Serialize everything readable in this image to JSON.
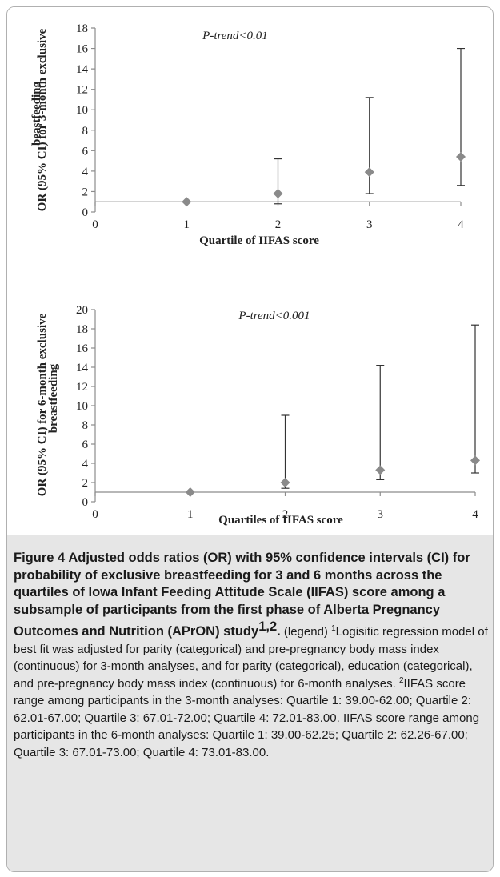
{
  "chart_data": [
    {
      "type": "scatter",
      "subtype": "point-estimates-with-error-bars",
      "annotation": "P-trend<0.01",
      "xlabel": "Quartile of IIFAS score",
      "ylabel_lines": [
        "OR (95% CI) for 3-month exclusive",
        "beastfeeding"
      ],
      "xlim": [
        0,
        4
      ],
      "ylim": [
        0,
        18
      ],
      "x_ticks": [
        0,
        1,
        2,
        3,
        4
      ],
      "y_ticks": [
        0,
        2,
        4,
        6,
        8,
        10,
        12,
        14,
        16,
        18
      ],
      "reference_line": 1,
      "points": [
        {
          "x": 1,
          "or": 1.0,
          "ci_low": 1.0,
          "ci_high": 1.0
        },
        {
          "x": 2,
          "or": 1.8,
          "ci_low": 0.8,
          "ci_high": 5.2
        },
        {
          "x": 3,
          "or": 3.9,
          "ci_low": 1.8,
          "ci_high": 11.2
        },
        {
          "x": 4,
          "or": 5.4,
          "ci_low": 2.6,
          "ci_high": 16.0
        }
      ],
      "marker_color": "#8a8a8a"
    },
    {
      "type": "scatter",
      "subtype": "point-estimates-with-error-bars",
      "annotation": "P-trend<0.001",
      "xlabel": "Quartiles of IIFAS score",
      "ylabel_lines": [
        "OR (95% CI) for 6-month exclusive",
        "breastfeeding"
      ],
      "xlim": [
        0,
        4
      ],
      "ylim": [
        0,
        20
      ],
      "x_ticks": [
        0,
        1,
        2,
        3,
        4
      ],
      "y_ticks": [
        0,
        2,
        4,
        6,
        8,
        10,
        12,
        14,
        16,
        18,
        20
      ],
      "reference_line": 1,
      "points": [
        {
          "x": 1,
          "or": 1.0,
          "ci_low": 1.0,
          "ci_high": 1.0
        },
        {
          "x": 2,
          "or": 2.0,
          "ci_low": 1.4,
          "ci_high": 9.0
        },
        {
          "x": 3,
          "or": 3.3,
          "ci_low": 2.3,
          "ci_high": 14.2
        },
        {
          "x": 4,
          "or": 4.3,
          "ci_low": 3.0,
          "ci_high": 18.4
        }
      ],
      "marker_color": "#8a8a8a"
    }
  ],
  "caption": {
    "figure_label": "Figure 4",
    "title": "Adjusted odds ratios (OR) with 95% confidence intervals (CI) for probability of exclusive breastfeeding for 3 and 6 months across the quartiles of Iowa Infant Feeding Attitude Scale (IIFAS) score among a subsample of participants from the first phase of Alberta Pregnancy Outcomes and Nutrition (APrON) study",
    "title_sup": "1,2",
    "title_end": ".",
    "legend_tag": "(legend)",
    "note1_sup": "1",
    "note1": "Logisitic regression model of best fit was adjusted for parity (categorical) and pre-pregnancy body mass index (continuous) for 3-month analyses, and for parity (categorical), education (categorical), and pre-pregnancy body mass index (continuous) for 6-month analyses.",
    "note2_sup": "2",
    "note2": "IIFAS score range among participants in the 3-month analyses: Quartile 1: 39.00-62.00; Quartile 2: 62.01-67.00; Quartile 3: 67.01-72.00; Quartile 4: 72.01-83.00. IIFAS score range among participants in the 6-month analyses: Quartile 1: 39.00-62.25; Quartile 2: 62.26-67.00; Quartile 3: 67.01-73.00; Quartile 4: 73.01-83.00."
  }
}
